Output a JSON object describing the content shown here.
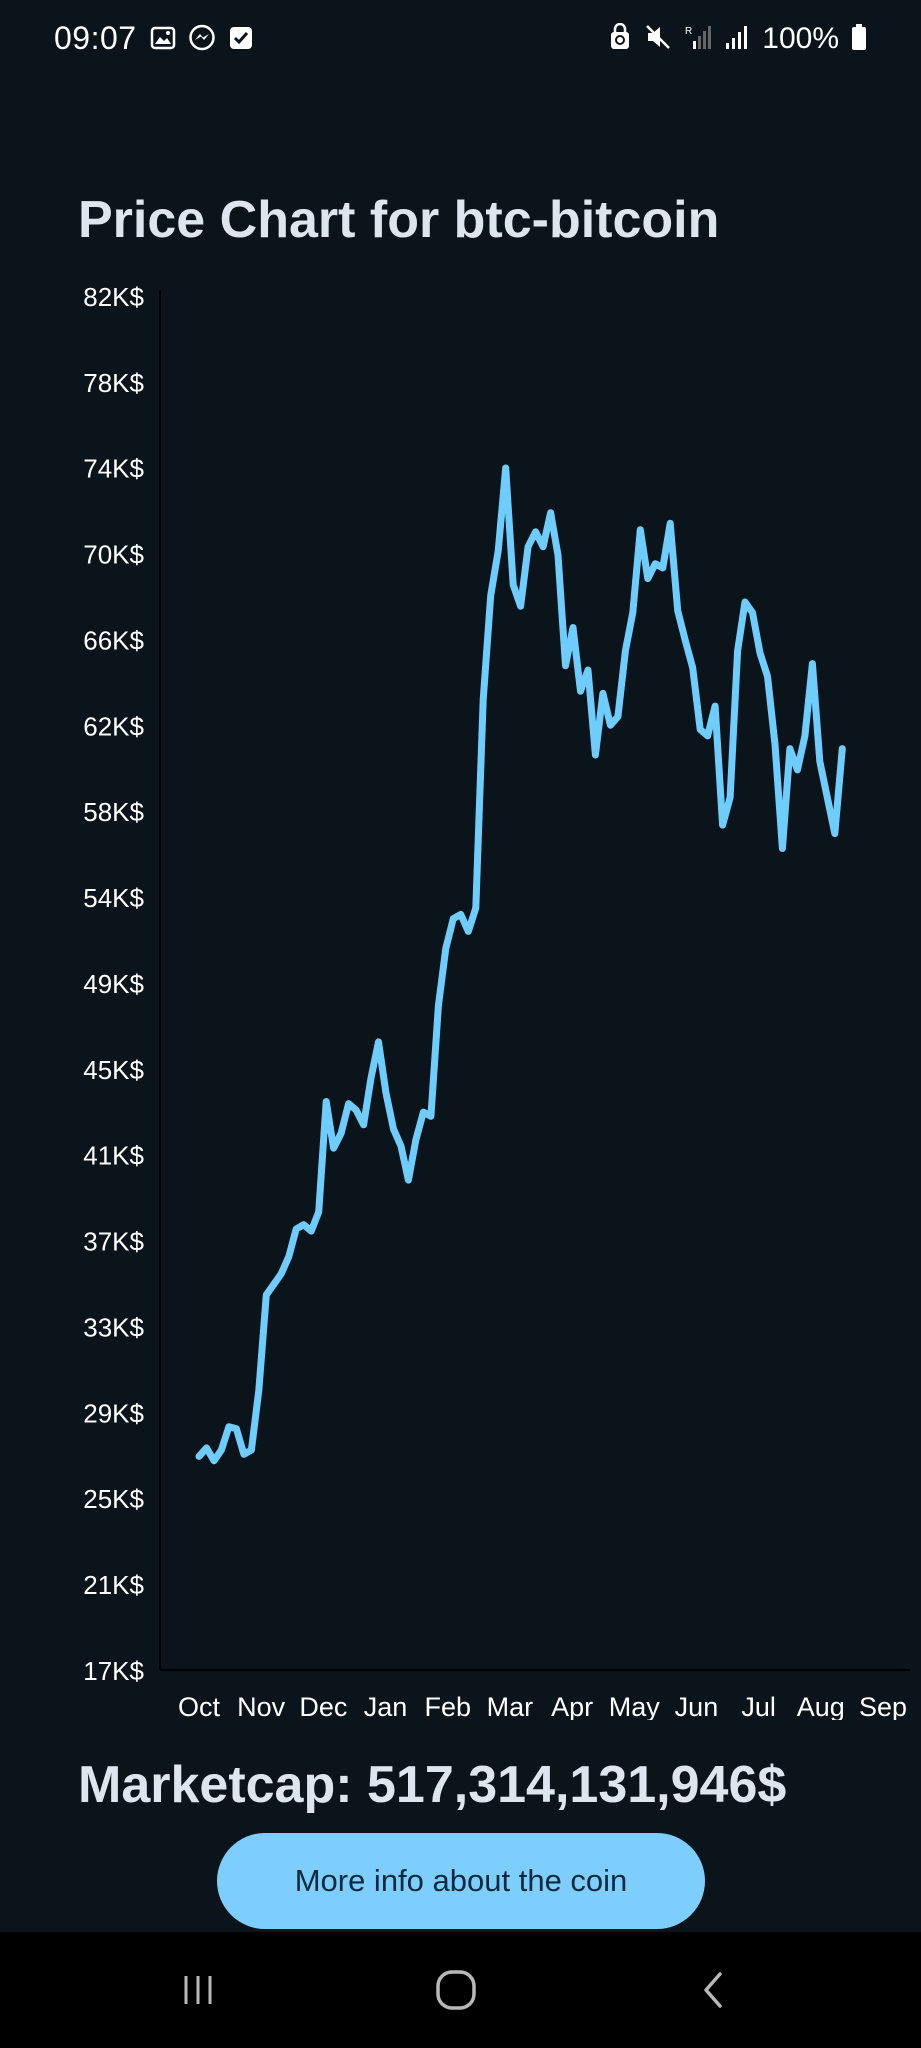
{
  "status_bar": {
    "time": "09:07",
    "battery_text": "100%",
    "left_icons": [
      "gallery-icon",
      "messenger-icon",
      "checkbox-icon"
    ],
    "right_icons": [
      "recycle-lock-icon",
      "mute-icon",
      "signal-r-icon",
      "signal-icon",
      "battery-icon"
    ]
  },
  "page": {
    "title": "Price Chart for btc-bitcoin",
    "marketcap": "Marketcap: 517,314,131,946$",
    "button_label": "More info about the coin"
  },
  "colors": {
    "background": "#0b141b",
    "line": "#6ecdfc",
    "button": "#7ecefd",
    "button_text": "#0c2a3d",
    "title": "#dde6ee"
  },
  "chart_data": {
    "type": "line",
    "title": "Price Chart for btc-bitcoin",
    "xlabel": "",
    "ylabel": "",
    "y_tick_labels": [
      "82K$",
      "78K$",
      "74K$",
      "70K$",
      "66K$",
      "62K$",
      "58K$",
      "54K$",
      "49K$",
      "45K$",
      "41K$",
      "37K$",
      "33K$",
      "29K$",
      "25K$",
      "21K$",
      "17K$"
    ],
    "x_tick_labels": [
      "Oct",
      "Nov",
      "Dec",
      "Jan",
      "Feb",
      "Mar",
      "Apr",
      "May",
      "Jun",
      "Jul",
      "Aug",
      "Sep"
    ],
    "ylim": [
      16952,
      81641
    ],
    "x_start": "2023-10-01",
    "grid": false,
    "legend": "none",
    "series": [
      {
        "x": [
          "2023-10-01",
          "2023-10-05",
          "2023-10-09",
          "2023-10-13",
          "2023-10-17",
          "2023-10-21",
          "2023-10-25",
          "2023-10-29",
          "2023-11-02",
          "2023-11-06",
          "2023-11-10",
          "2023-11-14",
          "2023-11-18",
          "2023-11-22",
          "2023-11-26",
          "2023-11-30",
          "2023-12-04",
          "2023-12-08",
          "2023-12-12",
          "2023-12-16",
          "2023-12-20",
          "2023-12-24",
          "2023-12-28",
          "2024-01-01",
          "2024-01-05",
          "2024-01-09",
          "2024-01-13",
          "2024-01-17",
          "2024-01-21",
          "2024-01-25",
          "2024-01-29",
          "2024-02-02",
          "2024-02-06",
          "2024-02-10",
          "2024-02-14",
          "2024-02-18",
          "2024-02-22",
          "2024-02-26",
          "2024-03-01",
          "2024-03-05",
          "2024-03-09",
          "2024-03-13",
          "2024-03-17",
          "2024-03-21",
          "2024-03-25",
          "2024-03-29",
          "2024-04-02",
          "2024-04-06",
          "2024-04-10",
          "2024-04-14",
          "2024-04-18",
          "2024-04-22",
          "2024-04-26",
          "2024-04-30",
          "2024-05-04",
          "2024-05-08",
          "2024-05-12",
          "2024-05-16",
          "2024-05-20",
          "2024-05-24",
          "2024-05-28",
          "2024-06-01",
          "2024-06-05",
          "2024-06-09",
          "2024-06-13",
          "2024-06-17",
          "2024-06-21",
          "2024-06-25",
          "2024-06-29",
          "2024-07-03",
          "2024-07-07",
          "2024-07-11",
          "2024-07-15",
          "2024-07-19",
          "2024-07-23",
          "2024-07-27",
          "2024-07-31",
          "2024-08-04",
          "2024-08-08",
          "2024-08-12",
          "2024-08-16",
          "2024-08-20",
          "2024-08-24",
          "2024-08-28",
          "2024-09-01",
          "2024-09-05",
          "2024-09-09"
        ],
        "values": [
          27000,
          27400,
          26800,
          27300,
          28400,
          28300,
          27100,
          27300,
          30100,
          34600,
          35100,
          35600,
          36400,
          37700,
          37900,
          37600,
          38500,
          43700,
          41500,
          42200,
          43600,
          43300,
          42600,
          44800,
          46500,
          44100,
          42400,
          41600,
          40000,
          41900,
          43200,
          43000,
          48200,
          50900,
          52300,
          52500,
          51700,
          52800,
          62600,
          67500,
          69600,
          73500,
          68000,
          67000,
          69800,
          70500,
          69800,
          71400,
          69400,
          64200,
          66000,
          63000,
          64000,
          60000,
          62900,
          61400,
          61800,
          64900,
          66700,
          70600,
          68300,
          69000,
          68800,
          70900,
          66800,
          65400,
          64100,
          61200,
          60900,
          62300,
          56700,
          58000,
          64900,
          67200,
          66700,
          64800,
          63700,
          60500,
          55600,
          60300,
          59300,
          60900,
          64300,
          59700,
          58000,
          56300,
          60300
        ],
        "name": ""
      }
    ]
  }
}
